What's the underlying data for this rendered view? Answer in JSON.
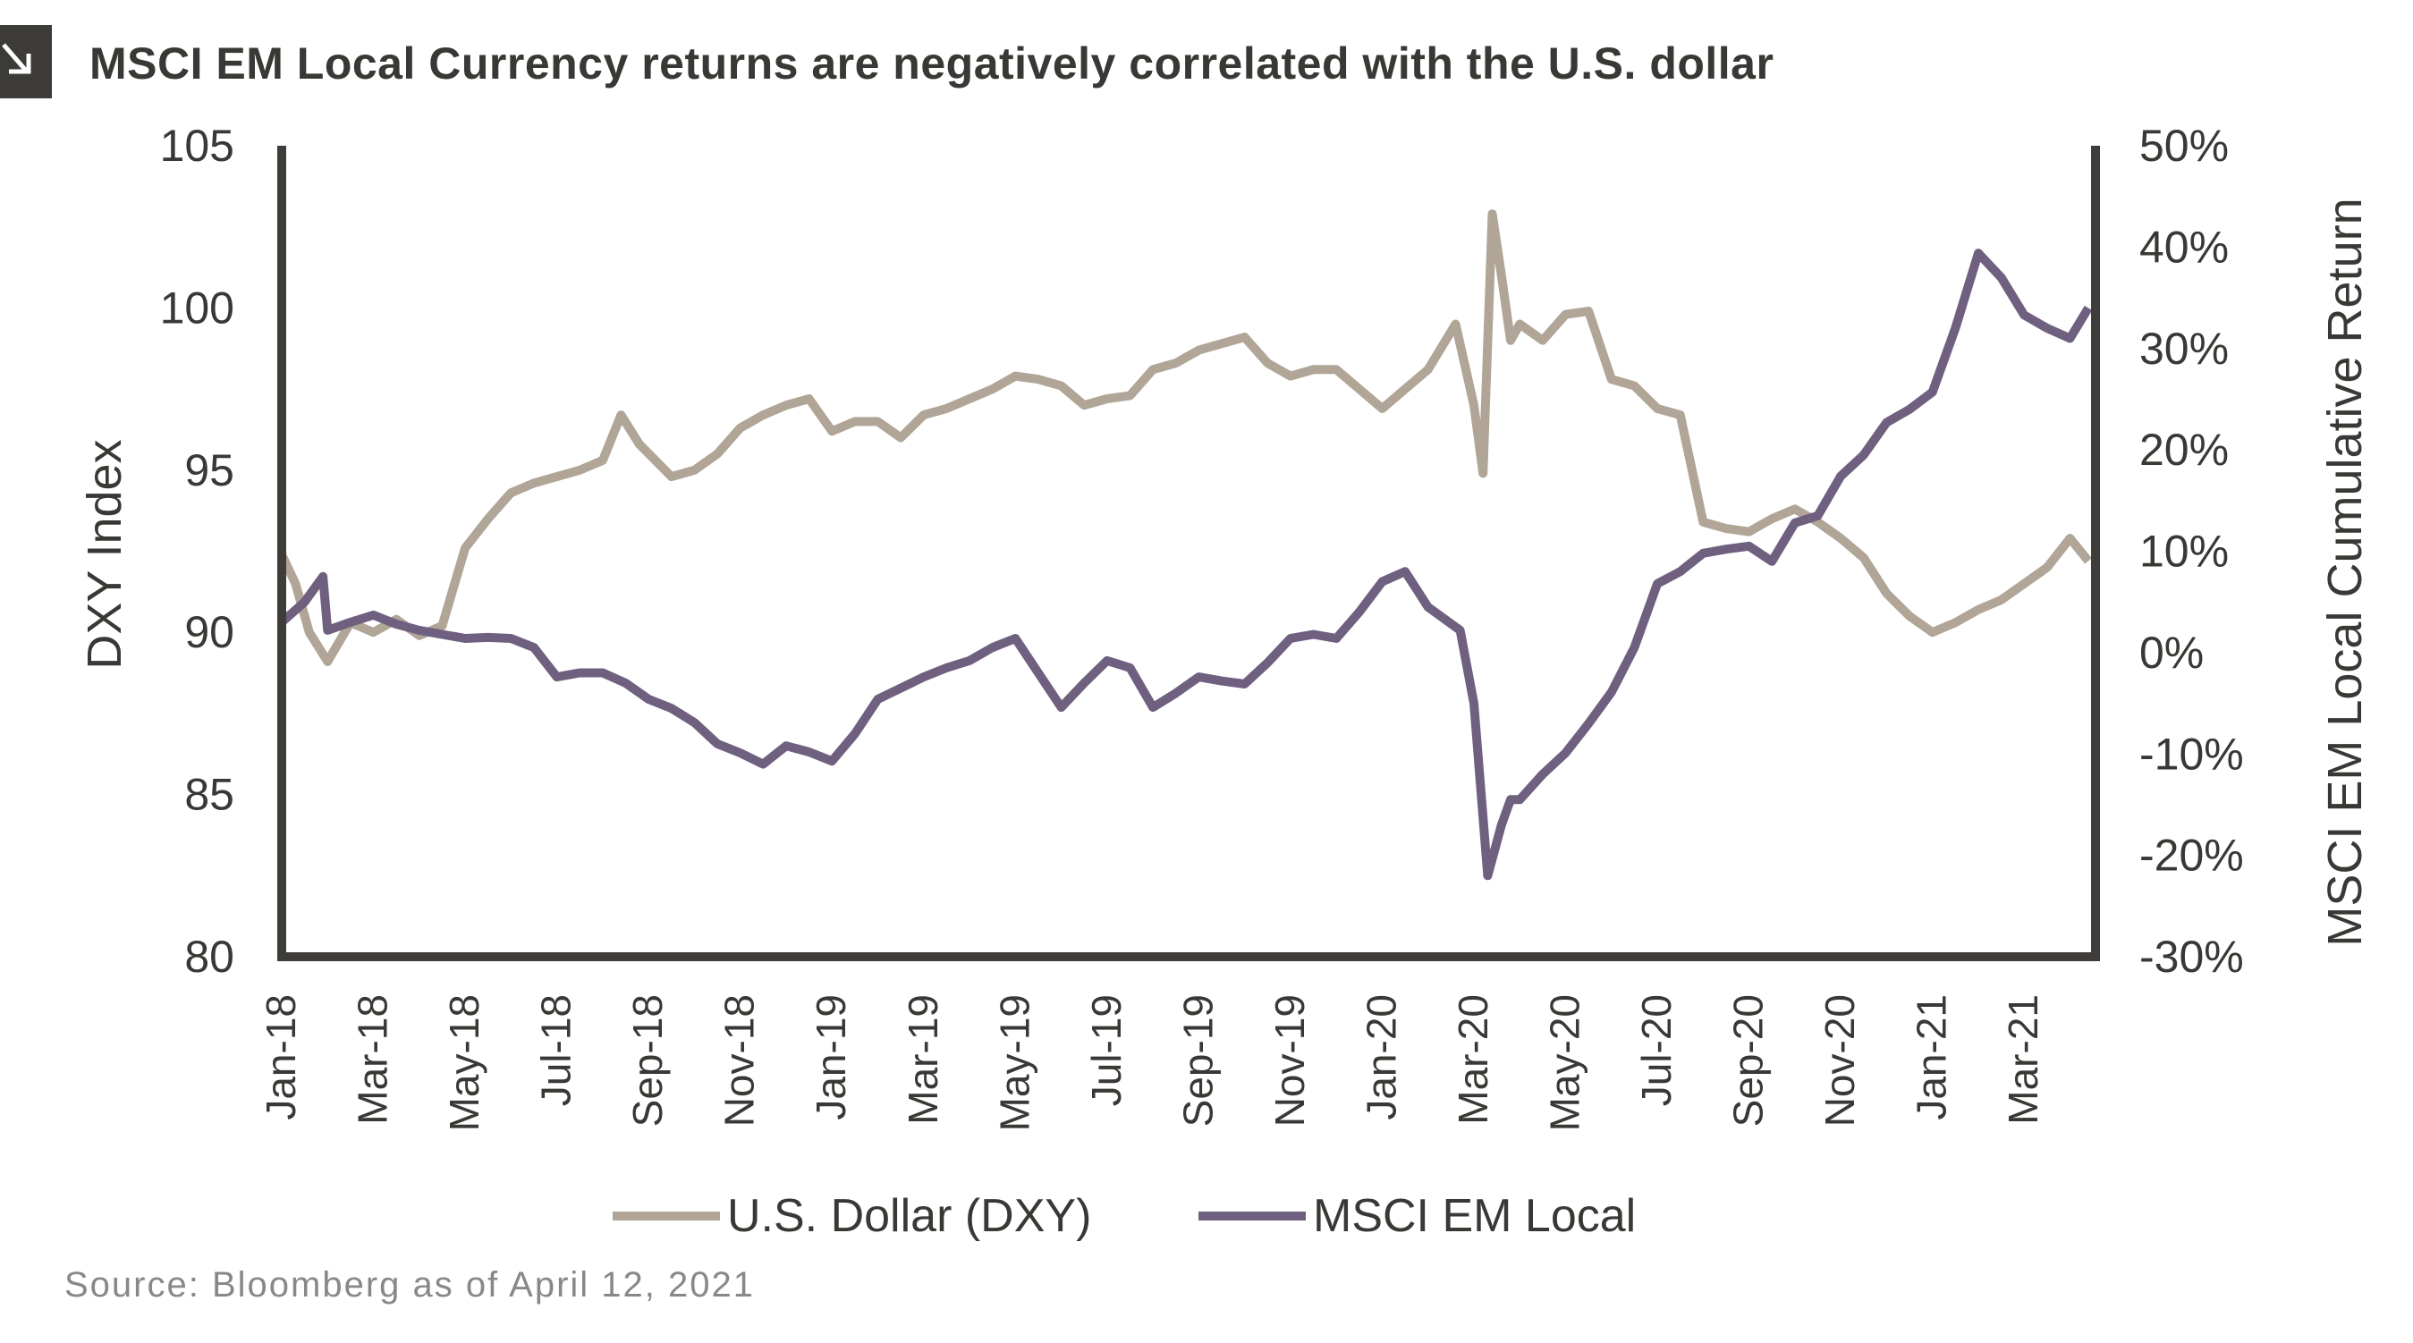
{
  "title": "MSCI EM Local Currency returns are negatively correlated with the U.S. dollar",
  "source": "Source: Bloomberg as of April 12, 2021",
  "chart_data": {
    "type": "line",
    "title": "MSCI EM Local Currency returns are negatively correlated with the U.S. dollar",
    "xlabel": "",
    "ylabel_left": "DXY Index",
    "ylabel_right": "MSCI EM Local Cumulative Return",
    "x_unit": "months since Jan 2018",
    "xlim": [
      0,
      39.4
    ],
    "ylim_left": [
      80,
      105
    ],
    "ylim_right": [
      -30,
      50
    ],
    "y_ticks_left": [
      "80",
      "85",
      "90",
      "95",
      "100",
      "105"
    ],
    "y_ticks_left_values": [
      80,
      85,
      90,
      95,
      100,
      105
    ],
    "y_ticks_right": [
      "-30%",
      "-20%",
      "-10%",
      "0%",
      "10%",
      "20%",
      "30%",
      "40%",
      "50%"
    ],
    "y_ticks_right_values": [
      -30,
      -20,
      -10,
      0,
      10,
      20,
      30,
      40,
      50
    ],
    "x_ticks": [
      "Jan-18",
      "Mar-18",
      "May-18",
      "Jul-18",
      "Sep-18",
      "Nov-18",
      "Jan-19",
      "Mar-19",
      "May-19",
      "Jul-19",
      "Sep-19",
      "Nov-19",
      "Jan-20",
      "Mar-20",
      "May-20",
      "Jul-20",
      "Sep-20",
      "Nov-20",
      "Jan-21",
      "Mar-21"
    ],
    "x_ticks_values": [
      0,
      2,
      4,
      6,
      8,
      10,
      12,
      14,
      16,
      18,
      20,
      22,
      24,
      26,
      28,
      30,
      32,
      34,
      36,
      38
    ],
    "grid": false,
    "legend_position": "bottom",
    "colors": {
      "dxy": "#b0a596",
      "em": "#6f6080",
      "axis": "#3f3d3a"
    },
    "series": [
      {
        "name": "U.S. Dollar (DXY)",
        "axis": "left",
        "x": [
          0,
          0.3,
          0.6,
          1,
          1.5,
          2,
          2.5,
          3,
          3.5,
          4,
          4.5,
          5,
          5.5,
          6,
          6.5,
          7,
          7.4,
          7.8,
          8.5,
          9,
          9.5,
          10,
          10.5,
          11,
          11.5,
          12,
          12.5,
          13,
          13.5,
          14,
          14.5,
          15,
          15.5,
          16,
          16.5,
          17,
          17.5,
          18,
          18.5,
          19,
          19.5,
          20,
          20.5,
          21,
          21.5,
          22,
          22.5,
          23,
          23.5,
          24,
          24.5,
          25,
          25.6,
          26,
          26.2,
          26.4,
          26.6,
          26.8,
          27,
          27.5,
          28,
          28.5,
          29,
          29.5,
          30,
          30.5,
          31,
          31.5,
          32,
          32.5,
          33,
          33.5,
          34,
          34.5,
          35,
          35.5,
          36,
          36.5,
          37,
          37.5,
          38,
          38.5,
          39,
          39.4
        ],
        "values": [
          92.4,
          91.5,
          90.0,
          89.1,
          90.3,
          90.0,
          90.4,
          89.9,
          90.2,
          92.6,
          93.5,
          94.3,
          94.6,
          94.8,
          95.0,
          95.3,
          96.7,
          95.8,
          94.8,
          95.0,
          95.5,
          96.3,
          96.7,
          97.0,
          97.2,
          96.2,
          96.5,
          96.5,
          96.0,
          96.7,
          96.9,
          97.2,
          97.5,
          97.9,
          97.8,
          97.6,
          97.0,
          97.2,
          97.3,
          98.1,
          98.3,
          98.7,
          98.9,
          99.1,
          98.3,
          97.9,
          98.1,
          98.1,
          97.5,
          96.9,
          97.5,
          98.1,
          99.5,
          97.0,
          94.9,
          102.9,
          101.0,
          99.0,
          99.5,
          99.0,
          99.8,
          99.9,
          97.8,
          97.6,
          96.9,
          96.7,
          93.4,
          93.2,
          93.1,
          93.5,
          93.8,
          93.4,
          92.9,
          92.3,
          91.2,
          90.5,
          90.0,
          90.3,
          90.7,
          91.0,
          91.5,
          92.0,
          92.9,
          92.2
        ]
      },
      {
        "name": "MSCI EM Local",
        "axis": "right",
        "x": [
          0,
          0.5,
          0.9,
          1,
          1.5,
          2,
          2.5,
          3,
          3.5,
          4,
          4.5,
          5,
          5.5,
          6,
          6.5,
          7,
          7.5,
          8,
          8.5,
          9,
          9.5,
          10,
          10.5,
          11,
          11.5,
          12,
          12.5,
          13,
          13.5,
          14,
          14.5,
          15,
          15.5,
          16,
          16.5,
          17,
          17.5,
          18,
          18.5,
          19,
          19.5,
          20,
          20.5,
          21,
          21.5,
          22,
          22.5,
          23,
          23.5,
          24,
          24.5,
          25,
          25.7,
          26,
          26.3,
          26.6,
          26.8,
          27,
          27.5,
          28,
          28.5,
          29,
          29.5,
          30,
          30.5,
          31,
          31.5,
          32,
          32.5,
          33,
          33.5,
          34,
          34.5,
          35,
          35.5,
          36,
          36.5,
          37,
          37.5,
          38,
          38.5,
          39,
          39.4
        ],
        "values": [
          3.0,
          5.0,
          7.5,
          2.2,
          3.0,
          3.7,
          2.8,
          2.2,
          1.8,
          1.4,
          1.5,
          1.4,
          0.5,
          -2.4,
          -2.0,
          -2.0,
          -3.0,
          -4.6,
          -5.5,
          -6.9,
          -9.0,
          -9.9,
          -11.0,
          -9.2,
          -9.8,
          -10.7,
          -8.0,
          -4.6,
          -3.5,
          -2.4,
          -1.5,
          -0.8,
          0.5,
          1.4,
          -2.0,
          -5.4,
          -3.0,
          -0.8,
          -1.5,
          -5.4,
          -4.0,
          -2.4,
          -2.8,
          -3.1,
          -1.0,
          1.4,
          1.8,
          1.4,
          4.0,
          7.0,
          8.0,
          4.5,
          2.2,
          -5.0,
          -22.0,
          -17.0,
          -14.5,
          -14.5,
          -12.0,
          -9.9,
          -7.0,
          -3.9,
          0.5,
          6.8,
          8.0,
          9.8,
          10.2,
          10.5,
          9.0,
          12.8,
          13.5,
          17.4,
          19.5,
          22.7,
          24.0,
          25.7,
          32.0,
          39.4,
          37.0,
          33.3,
          32.0,
          31.0,
          34.0
        ]
      }
    ]
  }
}
